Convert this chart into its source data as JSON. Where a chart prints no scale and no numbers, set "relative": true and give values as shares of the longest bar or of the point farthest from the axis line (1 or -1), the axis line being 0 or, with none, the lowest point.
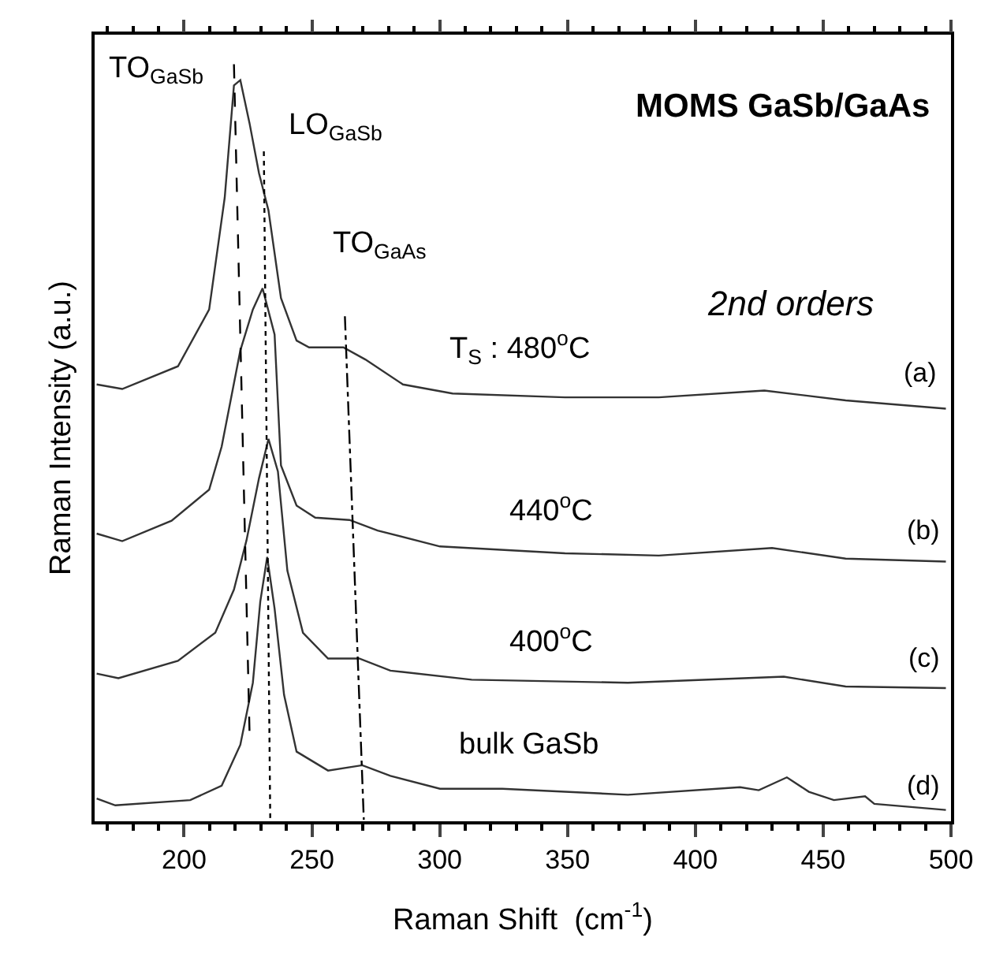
{
  "chart_data": {
    "type": "line",
    "relative": true,
    "title": "MOMS GaSb/GaAs",
    "xlabel": "Raman Shift  (cm$^{-1}$)",
    "ylabel": "Raman Intensity (a.u.)",
    "xlim": [
      165,
      500
    ],
    "xticks": [
      200,
      250,
      300,
      350,
      400,
      450,
      500
    ],
    "marker": "none",
    "series": [
      {
        "color": "#333333",
        "line_style": "solid",
        "x": [
          165.8,
          175.8,
          197.6,
          209.8,
          215.9,
          219.5,
          222,
          225.6,
          229.3,
          233,
          237.9,
          244,
          248.9,
          262.3,
          270.9,
          285.6,
          305,
          349,
          385.7,
          427,
          458.8,
          498
        ],
        "values": [
          0.577,
          0.571,
          0.601,
          0.676,
          0.824,
          0.972,
          0.979,
          0.922,
          0.856,
          0.807,
          0.691,
          0.635,
          0.626,
          0.626,
          0.61,
          0.577,
          0.565,
          0.56,
          0.56,
          0.569,
          0.556,
          0.545
        ]
      },
      {
        "color": "#333333",
        "line_style": "solid",
        "x": [
          165.8,
          175.8,
          195.1,
          209.8,
          214.7,
          222,
          226.9,
          230.7,
          235.4,
          237.9,
          244,
          251.3,
          264.7,
          275.7,
          300.1,
          349,
          385.7,
          430,
          458.8,
          498
        ],
        "values": [
          0.38,
          0.37,
          0.397,
          0.438,
          0.495,
          0.622,
          0.676,
          0.704,
          0.643,
          0.47,
          0.417,
          0.401,
          0.398,
          0.384,
          0.363,
          0.354,
          0.351,
          0.361,
          0.347,
          0.343
        ]
      },
      {
        "color": "#333333",
        "line_style": "solid",
        "x": [
          165.8,
          174.3,
          197.6,
          212.2,
          219.5,
          224.4,
          229.3,
          233,
          236.7,
          240.4,
          246.5,
          256.3,
          268.5,
          280.7,
          312.5,
          373.6,
          434.6,
          458.8,
          498
        ],
        "values": [
          0.195,
          0.189,
          0.212,
          0.249,
          0.306,
          0.371,
          0.453,
          0.505,
          0.462,
          0.331,
          0.249,
          0.215,
          0.215,
          0.199,
          0.187,
          0.183,
          0.191,
          0.178,
          0.176
        ]
      },
      {
        "color": "#333333",
        "line_style": "solid",
        "x": [
          165.8,
          173.1,
          202.4,
          214.7,
          222,
          226.9,
          229.8,
          232.5,
          235.4,
          239.1,
          244,
          256.3,
          269.7,
          280.7,
          300.1,
          324.5,
          373.6,
          417.5,
          424.8,
          435.8,
          444.4,
          454.2,
          466.4,
          470,
          498
        ],
        "values": [
          0.03,
          0.021,
          0.028,
          0.047,
          0.101,
          0.183,
          0.29,
          0.349,
          0.281,
          0.167,
          0.092,
          0.067,
          0.074,
          0.06,
          0.043,
          0.043,
          0.035,
          0.045,
          0.041,
          0.058,
          0.039,
          0.028,
          0.033,
          0.023,
          0.015
        ]
      },
      {
        "color": "#000000",
        "line_style": "dashed",
        "x": [
          219.5,
          225.6
        ],
        "values": [
          1.0,
          0.117
        ]
      },
      {
        "color": "#000000",
        "line_style": "dotted",
        "x": [
          231.2,
          233.7
        ],
        "values": [
          0.885,
          0.002
        ]
      },
      {
        "color": "#000000",
        "line_style": "dashdot",
        "x": [
          262.9,
          270.3
        ],
        "values": [
          0.667,
          0.002
        ]
      }
    ],
    "annotations": [
      "TO$_{GaSb}$",
      "LO$_{GaSb}$",
      "TO$_{GaAs}$",
      "2nd orders",
      "T$_{S}$ : 480$^{o}$C",
      "(a)",
      "440$^{o}$C",
      "(b)",
      "400$^{o}$C",
      "(c)",
      "bulk GaSb",
      "(d)"
    ]
  }
}
